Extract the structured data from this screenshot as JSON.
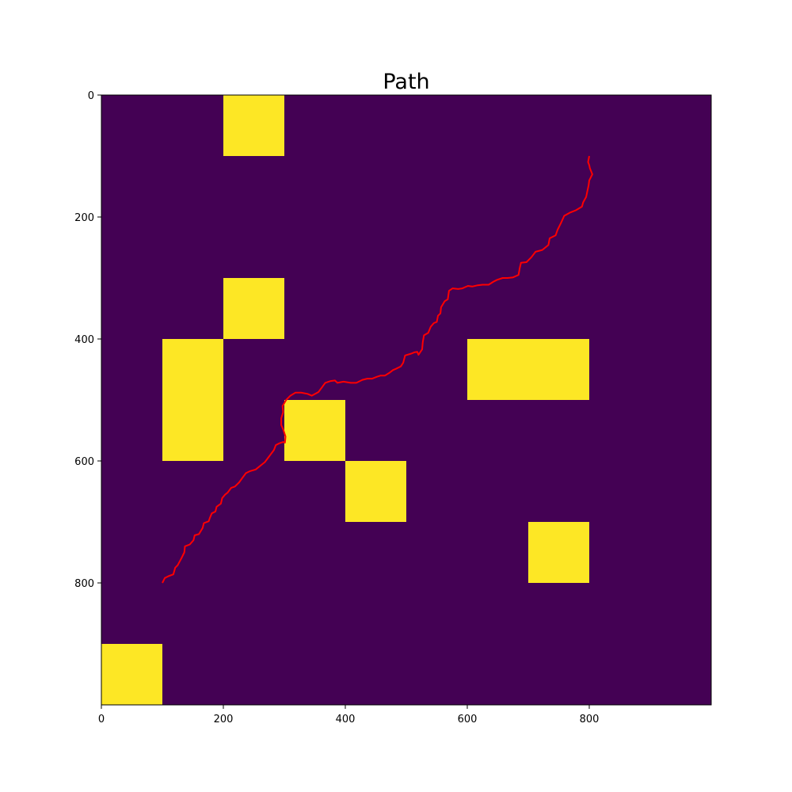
{
  "chart_data": {
    "type": "heatmap",
    "title": "Path",
    "xlabel": "",
    "ylabel": "",
    "xlim": [
      0,
      1000
    ],
    "ylim": [
      1000,
      0
    ],
    "xticks": [
      0,
      200,
      400,
      600,
      800
    ],
    "yticks": [
      0,
      200,
      400,
      600,
      800
    ],
    "xtick_labels": [
      "0",
      "200",
      "400",
      "600",
      "800"
    ],
    "ytick_labels": [
      "0",
      "200",
      "400",
      "600",
      "800"
    ],
    "grid": false,
    "colors": {
      "background": "#440154",
      "obstacle": "#fde725",
      "path": "#ff0000"
    },
    "obstacles": [
      {
        "x": [
          200,
          300
        ],
        "y": [
          0,
          100
        ]
      },
      {
        "x": [
          200,
          300
        ],
        "y": [
          300,
          400
        ]
      },
      {
        "x": [
          100,
          200
        ],
        "y": [
          400,
          600
        ]
      },
      {
        "x": [
          300,
          400
        ],
        "y": [
          500,
          600
        ]
      },
      {
        "x": [
          400,
          500
        ],
        "y": [
          600,
          700
        ]
      },
      {
        "x": [
          600,
          800
        ],
        "y": [
          400,
          500
        ]
      },
      {
        "x": [
          700,
          800
        ],
        "y": [
          700,
          800
        ]
      },
      {
        "x": [
          0,
          100
        ],
        "y": [
          900,
          1000
        ]
      }
    ],
    "series": [
      {
        "type": "line",
        "color": "#ff0000",
        "points": [
          [
            100,
            800
          ],
          [
            104,
            792
          ],
          [
            110,
            789
          ],
          [
            118,
            786
          ],
          [
            121,
            775
          ],
          [
            125,
            771
          ],
          [
            131,
            760
          ],
          [
            136,
            750
          ],
          [
            137,
            740
          ],
          [
            145,
            737
          ],
          [
            151,
            730
          ],
          [
            153,
            722
          ],
          [
            160,
            720
          ],
          [
            166,
            710
          ],
          [
            168,
            702
          ],
          [
            176,
            699
          ],
          [
            178,
            693
          ],
          [
            181,
            686
          ],
          [
            187,
            683
          ],
          [
            189,
            675
          ],
          [
            196,
            670
          ],
          [
            198,
            661
          ],
          [
            203,
            655
          ],
          [
            207,
            652
          ],
          [
            213,
            644
          ],
          [
            219,
            642
          ],
          [
            226,
            635
          ],
          [
            231,
            628
          ],
          [
            237,
            620
          ],
          [
            243,
            617
          ],
          [
            253,
            614
          ],
          [
            258,
            610
          ],
          [
            263,
            606
          ],
          [
            268,
            602
          ],
          [
            274,
            594
          ],
          [
            277,
            590
          ],
          [
            283,
            582
          ],
          [
            286,
            574
          ],
          [
            292,
            571
          ],
          [
            298,
            569
          ],
          [
            301,
            570
          ],
          [
            302,
            560
          ],
          [
            298,
            548
          ],
          [
            295,
            541
          ],
          [
            295,
            530
          ],
          [
            298,
            520
          ],
          [
            297,
            510
          ],
          [
            303,
            500
          ],
          [
            310,
            493
          ],
          [
            318,
            488
          ],
          [
            328,
            488
          ],
          [
            338,
            490
          ],
          [
            345,
            493
          ],
          [
            356,
            487
          ],
          [
            362,
            479
          ],
          [
            367,
            472
          ],
          [
            376,
            469
          ],
          [
            383,
            468
          ],
          [
            387,
            472
          ],
          [
            397,
            470
          ],
          [
            409,
            472
          ],
          [
            418,
            472
          ],
          [
            428,
            467
          ],
          [
            436,
            465
          ],
          [
            444,
            465
          ],
          [
            452,
            462
          ],
          [
            458,
            460
          ],
          [
            465,
            460
          ],
          [
            473,
            455
          ],
          [
            478,
            451
          ],
          [
            483,
            449
          ],
          [
            491,
            445
          ],
          [
            495,
            439
          ],
          [
            498,
            427
          ],
          [
            508,
            424
          ],
          [
            513,
            422
          ],
          [
            518,
            421
          ],
          [
            520,
            426
          ],
          [
            526,
            417
          ],
          [
            527,
            405
          ],
          [
            529,
            394
          ],
          [
            536,
            390
          ],
          [
            540,
            380
          ],
          [
            545,
            374
          ],
          [
            550,
            372
          ],
          [
            552,
            362
          ],
          [
            556,
            358
          ],
          [
            557,
            348
          ],
          [
            563,
            338
          ],
          [
            568,
            335
          ],
          [
            570,
            321
          ],
          [
            576,
            317
          ],
          [
            585,
            318
          ],
          [
            592,
            317
          ],
          [
            601,
            313
          ],
          [
            608,
            314
          ],
          [
            617,
            312
          ],
          [
            625,
            311
          ],
          [
            635,
            311
          ],
          [
            643,
            306
          ],
          [
            649,
            303
          ],
          [
            658,
            300
          ],
          [
            666,
            300
          ],
          [
            675,
            299
          ],
          [
            684,
            295
          ],
          [
            686,
            284
          ],
          [
            688,
            275
          ],
          [
            697,
            274
          ],
          [
            705,
            266
          ],
          [
            712,
            257
          ],
          [
            723,
            254
          ],
          [
            733,
            246
          ],
          [
            735,
            235
          ],
          [
            745,
            230
          ],
          [
            748,
            221
          ],
          [
            754,
            209
          ],
          [
            759,
            198
          ],
          [
            768,
            193
          ],
          [
            778,
            189
          ],
          [
            788,
            183
          ],
          [
            790,
            176
          ],
          [
            795,
            167
          ],
          [
            797,
            157
          ],
          [
            799,
            148
          ],
          [
            800,
            140
          ],
          [
            805,
            130
          ],
          [
            801,
            120
          ],
          [
            800,
            115
          ],
          [
            798,
            110
          ],
          [
            800,
            100
          ]
        ]
      }
    ]
  }
}
